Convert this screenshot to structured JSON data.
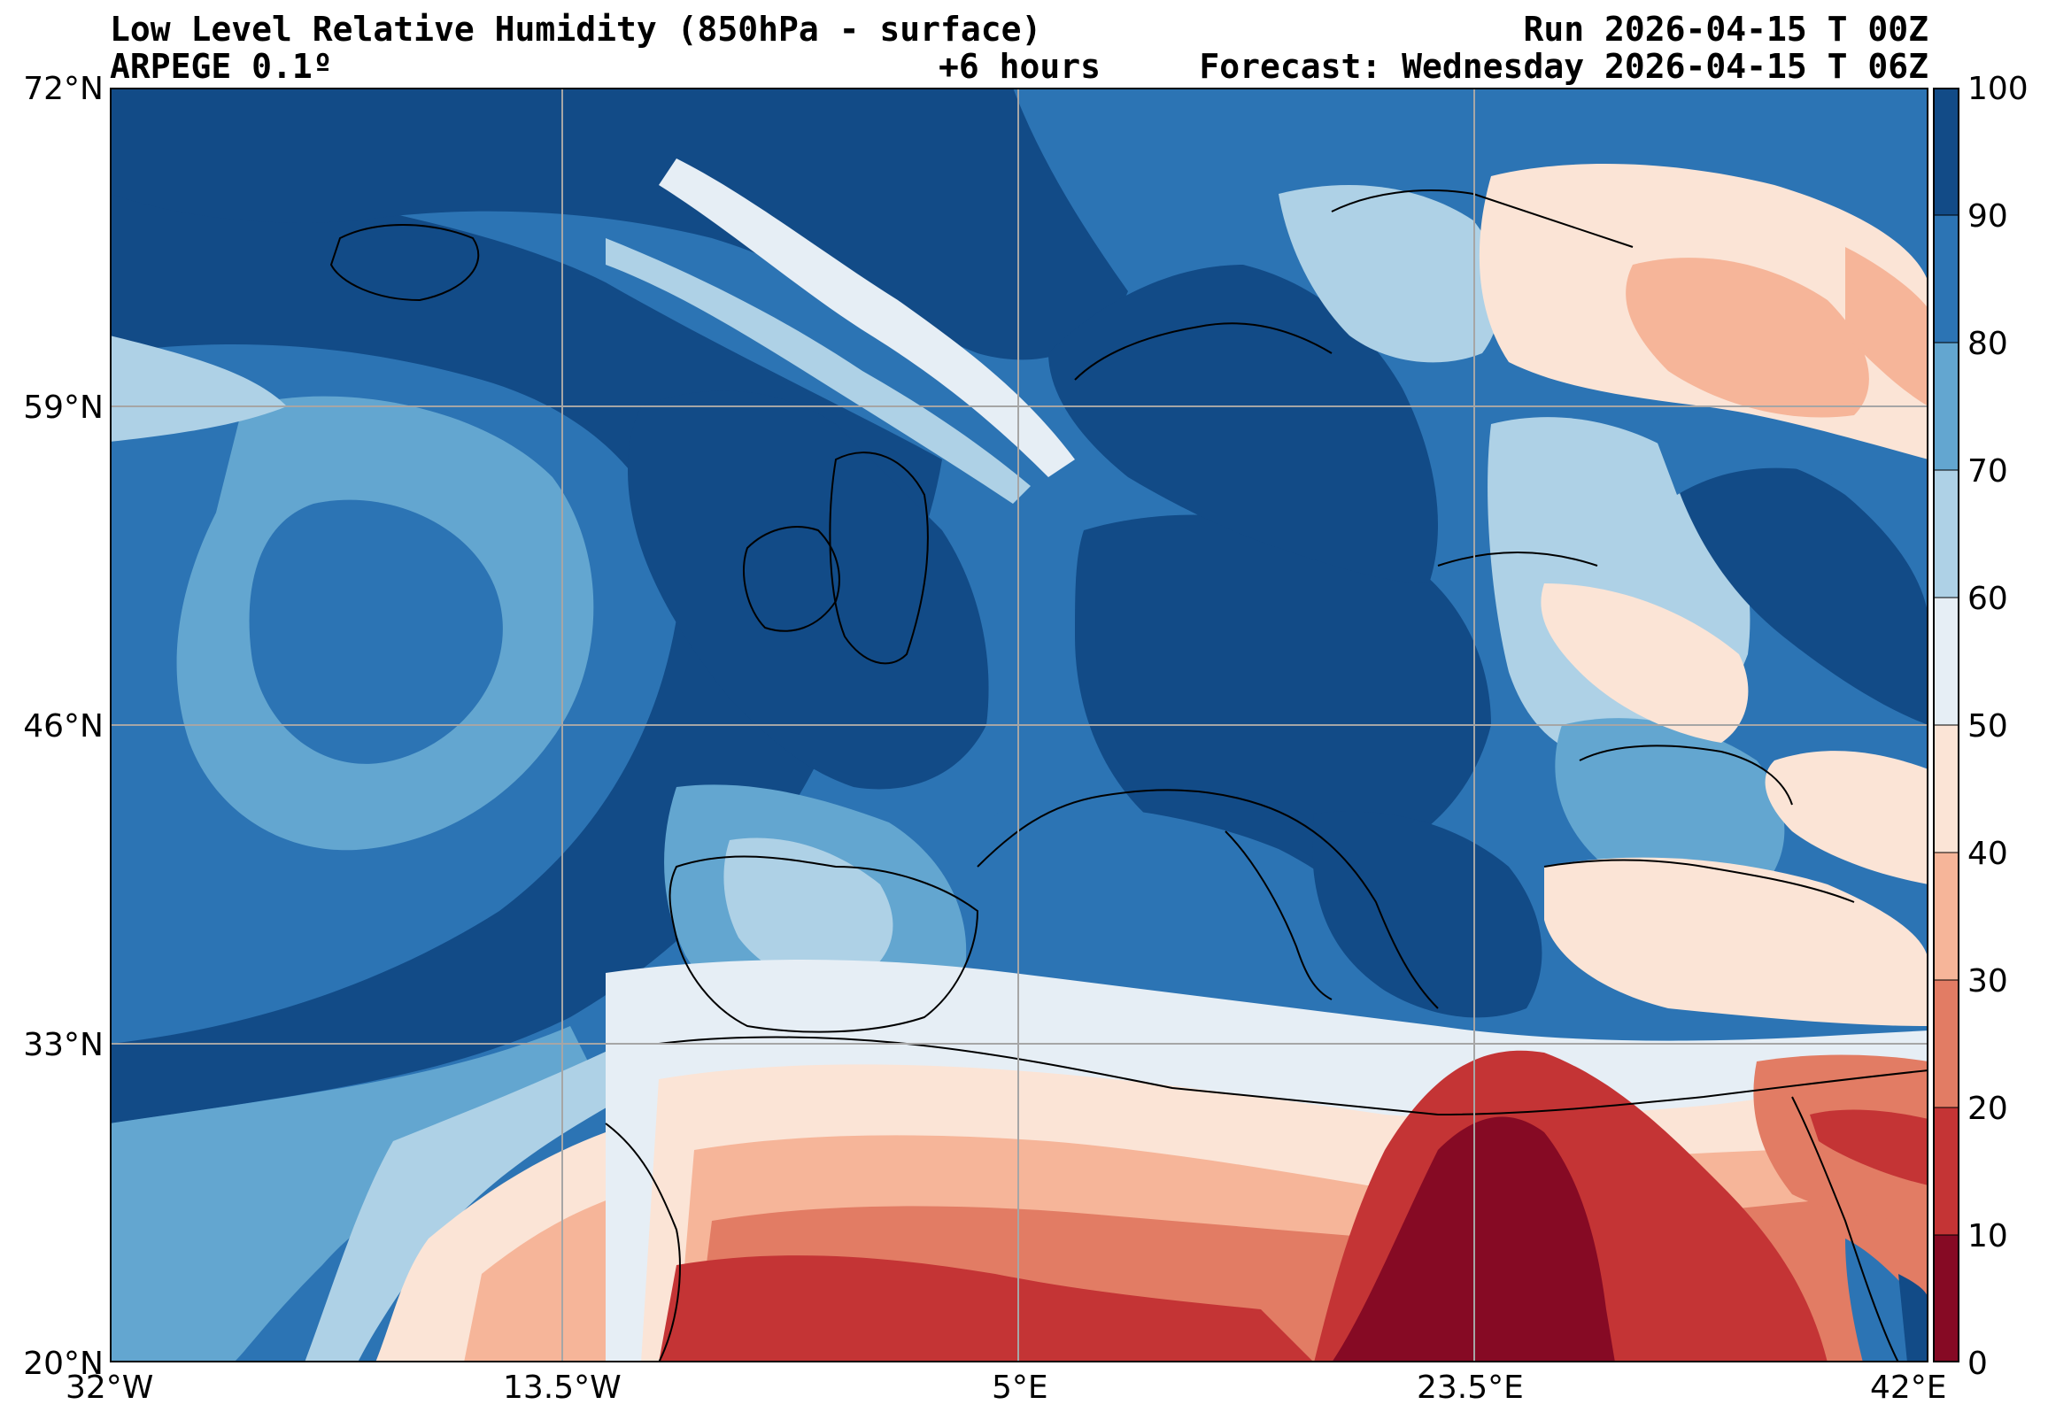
{
  "header": {
    "title": "Low Level Relative Humidity (850hPa - surface)",
    "model": "ARPEGE 0.1º",
    "lead": "+6 hours",
    "run": "Run 2026-04-15 T 00Z",
    "forecast": "Forecast: Wednesday 2026-04-15 T 06Z"
  },
  "axes": {
    "lat_labels": [
      "72°N",
      "59°N",
      "46°N",
      "33°N",
      "20°N"
    ],
    "lon_labels": [
      "32°W",
      "13.5°W",
      "5°E",
      "23.5°E",
      "42°E"
    ],
    "lat_values": [
      72,
      59,
      46,
      33,
      20
    ],
    "lon_values": [
      -32,
      -13.5,
      5,
      23.5,
      42
    ],
    "lat_range": [
      20,
      72
    ],
    "lon_range": [
      -32,
      42
    ],
    "grid": true
  },
  "colorbar": {
    "ticks": [
      "0",
      "10",
      "20",
      "30",
      "40",
      "50",
      "60",
      "70",
      "80",
      "90",
      "100"
    ],
    "colors": [
      "#860a24",
      "#c43435",
      "#e27c64",
      "#f6b599",
      "#fbe4d6",
      "#e6eef5",
      "#aed1e6",
      "#63a6d0",
      "#2c74b4",
      "#124b87"
    ]
  },
  "map": {
    "variable": "relative humidity",
    "unit": "%",
    "land_color": "#ffffff",
    "coastline_color": "#000000"
  }
}
